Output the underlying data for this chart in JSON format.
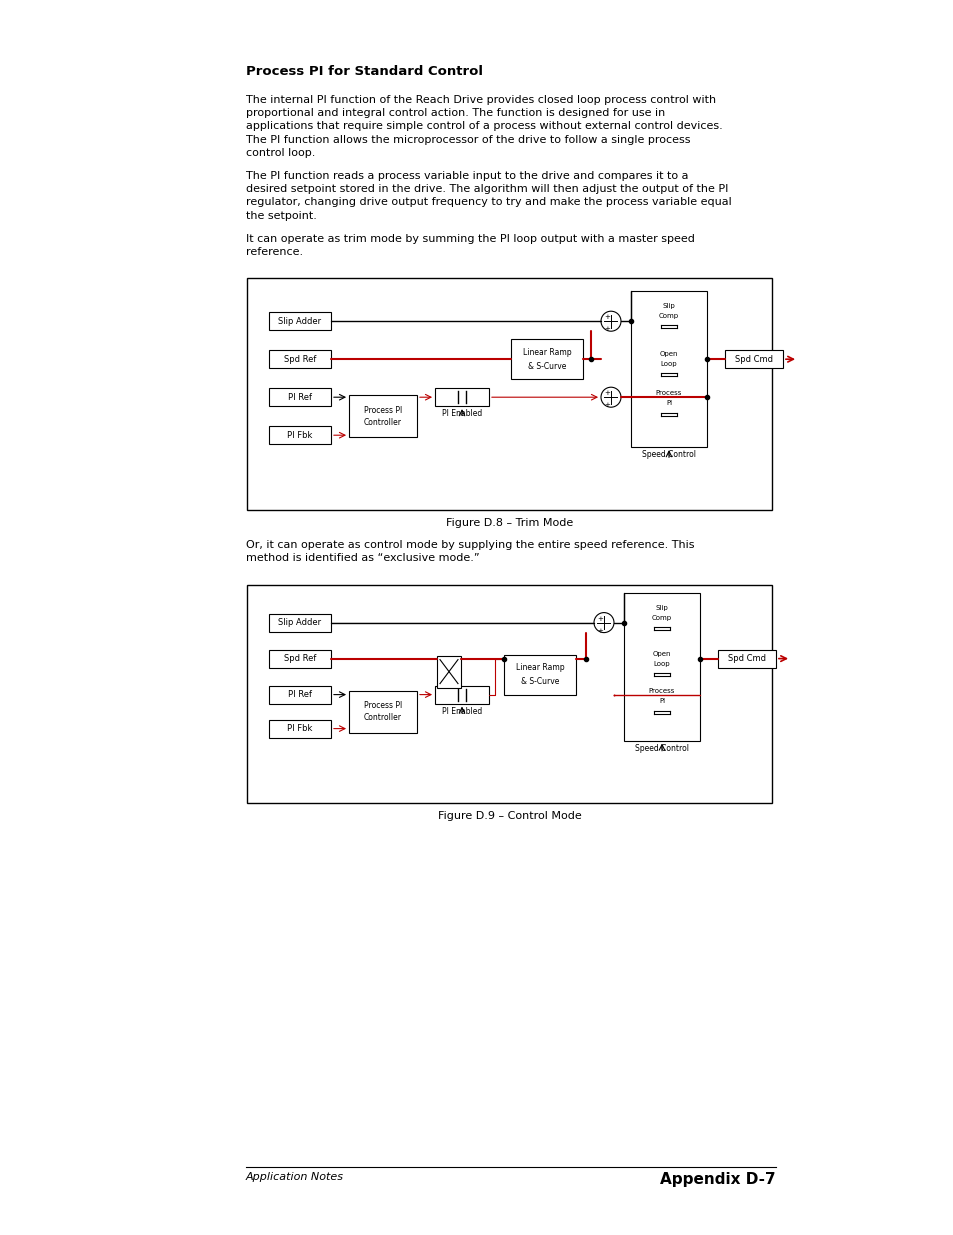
{
  "page_bg": "#ffffff",
  "title": "Process PI for Standard Control",
  "para1_lines": [
    "The internal PI function of the Reach Drive provides closed loop process control with",
    "proportional and integral control action. The function is designed for use in",
    "applications that require simple control of a process without external control devices.",
    "The PI function allows the microprocessor of the drive to follow a single process",
    "control loop."
  ],
  "para2_lines": [
    "The PI function reads a process variable input to the drive and compares it to a",
    "desired setpoint stored in the drive. The algorithm will then adjust the output of the PI",
    "regulator, changing drive output frequency to try and make the process variable equal",
    "the setpoint."
  ],
  "para3_lines": [
    "It can operate as trim mode by summing the PI loop output with a master speed",
    "reference."
  ],
  "fig1_caption": "Figure D.8 – Trim Mode",
  "para4_lines": [
    "Or, it can operate as control mode by supplying the entire speed reference. This",
    "method is identified as “exclusive mode.”"
  ],
  "fig2_caption": "Figure D.9 – Control Mode",
  "footer_left": "Application Notes",
  "footer_right": "Appendix D-7",
  "text_color": "#000000",
  "red_color": "#bb0000",
  "box_color": "#000000"
}
